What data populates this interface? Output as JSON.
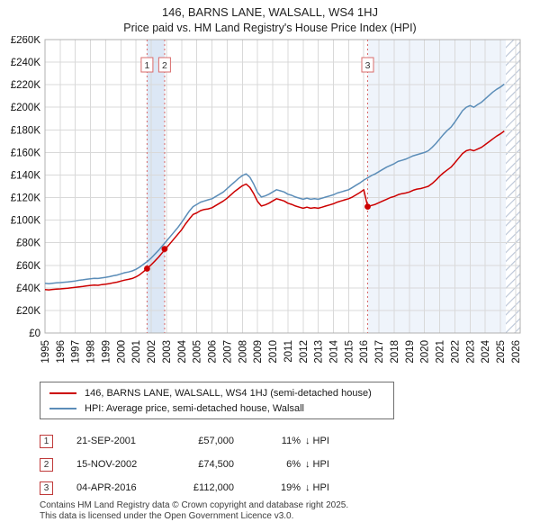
{
  "header": {
    "title": "146, BARNS LANE, WALSALL, WS4 1HJ",
    "subtitle": "Price paid vs. HM Land Registry's House Price Index (HPI)"
  },
  "chart_data": {
    "type": "line",
    "title": "Price paid vs. HPI",
    "unit": "GBP thousands",
    "x_range": [
      1995,
      2026.3
    ],
    "y_range": [
      0,
      260
    ],
    "x_start": 1995,
    "x_step": 0.25,
    "x_ticks": [
      1995,
      1996,
      1997,
      1998,
      1999,
      2000,
      2001,
      2002,
      2003,
      2004,
      2005,
      2006,
      2007,
      2008,
      2009,
      2010,
      2011,
      2012,
      2013,
      2014,
      2015,
      2016,
      2017,
      2018,
      2019,
      2020,
      2021,
      2022,
      2023,
      2024,
      2025,
      2026
    ],
    "y_ticks": [
      {
        "v": 0,
        "label": "£0"
      },
      {
        "v": 20,
        "label": "£20K"
      },
      {
        "v": 40,
        "label": "£40K"
      },
      {
        "v": 60,
        "label": "£60K"
      },
      {
        "v": 80,
        "label": "£80K"
      },
      {
        "v": 100,
        "label": "£100K"
      },
      {
        "v": 120,
        "label": "£120K"
      },
      {
        "v": 140,
        "label": "£140K"
      },
      {
        "v": 160,
        "label": "£160K"
      },
      {
        "v": 180,
        "label": "£180K"
      },
      {
        "v": 200,
        "label": "£200K"
      },
      {
        "v": 220,
        "label": "£220K"
      },
      {
        "v": 240,
        "label": "£240K"
      },
      {
        "v": 260,
        "label": "£260K"
      }
    ],
    "colors": {
      "price": "#cc0000",
      "hpi": "#5b8db8",
      "sale_line": "#d96b6b",
      "hatch": "#b9c4d6",
      "grid": "#d9d9d9",
      "border": "#b0b0b0"
    },
    "series": [
      {
        "id": "price-paid-line",
        "name": "146, BARNS LANE, WALSALL, WS4 1HJ (semi-detached house)",
        "color": "#cc0000",
        "values": [
          38.5,
          38.2,
          38.6,
          38.9,
          39.1,
          39.4,
          39.6,
          40.0,
          40.4,
          40.9,
          41.3,
          41.8,
          42.2,
          42.5,
          42.3,
          42.9,
          43.3,
          43.8,
          44.5,
          45.1,
          46.0,
          46.9,
          47.5,
          48.3,
          49.8,
          51.8,
          54.5,
          57.5,
          60.5,
          64.0,
          67.5,
          71.5,
          75.5,
          79.5,
          83.5,
          87.5,
          91.5,
          96.5,
          101.0,
          105.0,
          106.5,
          108.5,
          109.5,
          110.0,
          111.0,
          113.0,
          115.0,
          117.0,
          119.5,
          122.5,
          125.5,
          128.0,
          130.5,
          132.0,
          129.0,
          123.5,
          116.5,
          112.5,
          113.5,
          115.0,
          117.0,
          119.0,
          118.0,
          117.0,
          115.0,
          114.0,
          112.5,
          111.5,
          110.5,
          111.5,
          110.5,
          111.0,
          110.5,
          111.5,
          112.5,
          113.5,
          114.5,
          116.0,
          117.0,
          118.0,
          119.0,
          120.5,
          122.5,
          124.5,
          127.0,
          112.0,
          113.0,
          114.0,
          115.5,
          117.0,
          118.5,
          120.0,
          121.0,
          122.5,
          123.5,
          124.0,
          125.0,
          126.5,
          127.5,
          128.0,
          129.0,
          130.0,
          132.5,
          135.5,
          139.0,
          142.0,
          144.5,
          147.0,
          151.0,
          155.0,
          159.0,
          161.5,
          162.5,
          161.5,
          163.0,
          164.5,
          167.0,
          169.5,
          172.0,
          174.5,
          176.5,
          179.0
        ]
      },
      {
        "id": "hpi-line",
        "name": "HPI: Average price, semi-detached house, Walsall",
        "color": "#5b8db8",
        "values": [
          44.0,
          43.7,
          44.1,
          44.4,
          44.7,
          45.0,
          45.2,
          45.7,
          46.1,
          46.7,
          47.1,
          47.7,
          48.1,
          48.5,
          48.3,
          48.9,
          49.4,
          49.9,
          50.7,
          51.4,
          52.4,
          53.4,
          54.1,
          55.0,
          56.5,
          58.5,
          61.0,
          63.5,
          66.5,
          70.0,
          73.5,
          77.5,
          81.5,
          85.5,
          89.5,
          93.5,
          98.0,
          103.0,
          108.0,
          112.0,
          114.0,
          116.0,
          117.0,
          118.0,
          119.0,
          121.0,
          123.0,
          125.0,
          128.0,
          131.0,
          134.0,
          137.0,
          139.5,
          141.0,
          138.0,
          132.0,
          124.5,
          120.5,
          121.5,
          123.0,
          125.0,
          127.0,
          126.0,
          125.0,
          123.0,
          122.0,
          120.5,
          119.5,
          118.5,
          119.5,
          118.5,
          119.0,
          118.5,
          119.5,
          120.5,
          121.5,
          122.5,
          124.0,
          125.0,
          126.0,
          127.0,
          129.0,
          131.0,
          133.0,
          135.5,
          137.5,
          139.5,
          141.0,
          143.0,
          145.0,
          147.0,
          148.5,
          150.0,
          152.0,
          153.0,
          154.0,
          155.5,
          157.0,
          158.0,
          159.0,
          160.0,
          161.5,
          164.5,
          168.0,
          172.0,
          176.0,
          179.5,
          182.5,
          187.0,
          192.0,
          197.0,
          200.0,
          201.5,
          200.0,
          202.5,
          204.5,
          207.5,
          210.5,
          213.5,
          216.0,
          218.0,
          220.5
        ]
      }
    ],
    "sales": [
      {
        "n": 1,
        "x": 2001.72,
        "value_k": 57,
        "date": "21-SEP-2001"
      },
      {
        "n": 2,
        "x": 2002.88,
        "value_k": 74.5,
        "date": "15-NOV-2002"
      },
      {
        "n": 3,
        "x": 2016.25,
        "value_k": 112,
        "date": "04-APR-2016"
      }
    ],
    "bands": [
      {
        "from": 2001.72,
        "to": 2002.88,
        "color": "#dce7f5"
      },
      {
        "from": 2016.25,
        "to": 2025.35,
        "color": "#eff4fb"
      }
    ],
    "hatch_from": 2025.35
  },
  "legend": {
    "items": [
      {
        "label": "146, BARNS LANE, WALSALL, WS4 1HJ (semi-detached house)",
        "color": "#cc0000"
      },
      {
        "label": "HPI: Average price, semi-detached house, Walsall",
        "color": "#5b8db8"
      }
    ]
  },
  "transactions": [
    {
      "n": "1",
      "date": "21-SEP-2001",
      "price": "£57,000",
      "hpi_pct": "11%",
      "hpi_rel": "↓ HPI"
    },
    {
      "n": "2",
      "date": "15-NOV-2002",
      "price": "£74,500",
      "hpi_pct": "6%",
      "hpi_rel": "↓ HPI"
    },
    {
      "n": "3",
      "date": "04-APR-2016",
      "price": "£112,000",
      "hpi_pct": "19%",
      "hpi_rel": "↓ HPI"
    }
  ],
  "footer": {
    "line1": "Contains HM Land Registry data © Crown copyright and database right 2025.",
    "line2": "This data is licensed under the Open Government Licence v3.0."
  }
}
